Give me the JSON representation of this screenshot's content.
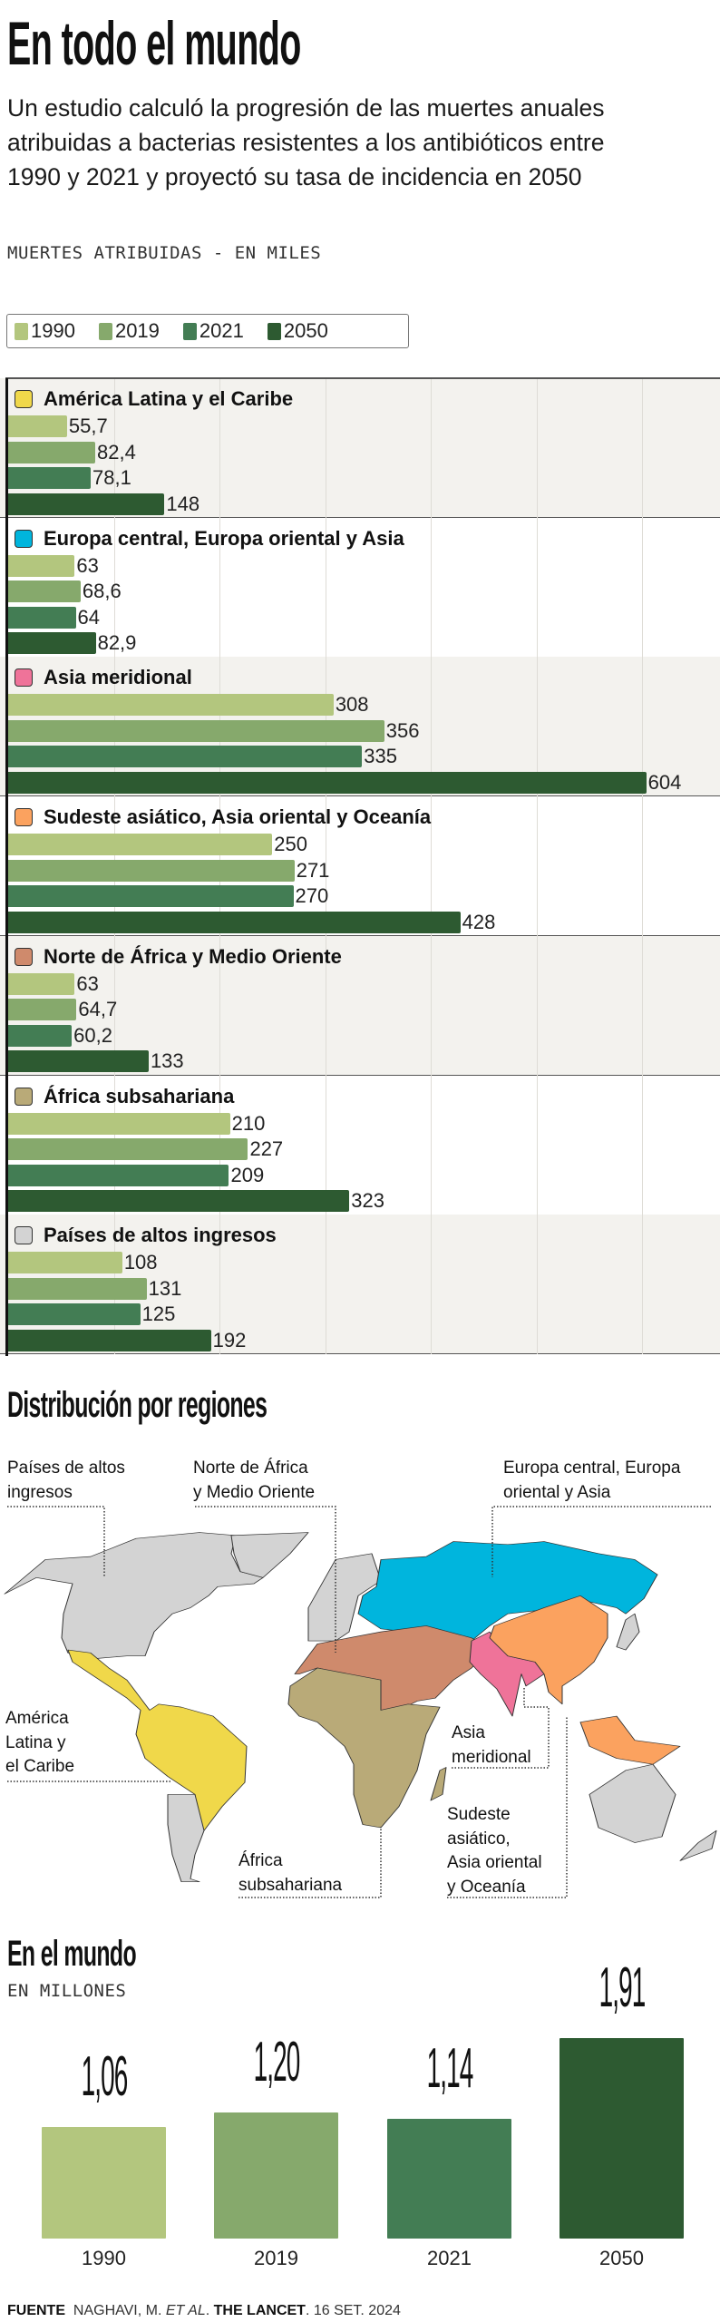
{
  "header": {
    "title": "En todo el mundo",
    "subtitle": "Un estudio calculó la progresión de las muertes anuales atribuidas a bacterias resistentes a los antibióticos entre 1990 y 2021 y proyectó su tasa de incidencia en 2050",
    "unit": "MUERTES ATRIBUIDAS - EN MILES"
  },
  "chart_data": [
    {
      "type": "bar",
      "orientation": "horizontal",
      "unit": "miles de muertes",
      "xlim": [
        0,
        680
      ],
      "grid": true,
      "legend_placement": "top-left",
      "series_names": [
        "1990",
        "2019",
        "2021",
        "2050"
      ],
      "series_colors": [
        "#b3c67e",
        "#86a96c",
        "#437d54",
        "#2d5a31"
      ],
      "regions": [
        {
          "name": "América Latina y el Caribe",
          "color": "#f0d84a",
          "values": [
            55.7,
            82.4,
            78.1,
            148
          ],
          "labels": [
            "55,7",
            "82,4",
            "78,1",
            "148"
          ]
        },
        {
          "name": "Europa central, Europa oriental y Asia",
          "color": "#00b5dd",
          "values": [
            63,
            68.6,
            64,
            82.9
          ],
          "labels": [
            "63",
            "68,6",
            "64",
            "82,9"
          ]
        },
        {
          "name": "Asia meridional",
          "color": "#ef7399",
          "values": [
            308,
            356,
            335,
            604
          ],
          "labels": [
            "308",
            "356",
            "335",
            "604"
          ]
        },
        {
          "name": "Sudeste asiático, Asia oriental y Oceanía",
          "color": "#fba25f",
          "values": [
            250,
            271,
            270,
            428
          ],
          "labels": [
            "250",
            "271",
            "270",
            "428"
          ]
        },
        {
          "name": "Norte de África y Medio Oriente",
          "color": "#cf8a6c",
          "values": [
            63,
            64.7,
            60.2,
            133
          ],
          "labels": [
            "63",
            "64,7",
            "60,2",
            "133"
          ]
        },
        {
          "name": "África subsahariana",
          "color": "#b9aa78",
          "values": [
            210,
            227,
            209,
            323
          ],
          "labels": [
            "210",
            "227",
            "209",
            "323"
          ]
        },
        {
          "name": "Países de altos ingresos",
          "color": "#d3d3d3",
          "values": [
            108,
            131,
            125,
            192
          ],
          "labels": [
            "108",
            "131",
            "125",
            "192"
          ]
        }
      ]
    },
    {
      "type": "bar",
      "title": "En el mundo",
      "unit": "EN MILLONES",
      "categories": [
        "1990",
        "2019",
        "2021",
        "2050"
      ],
      "values": [
        1.06,
        1.2,
        1.14,
        1.91
      ],
      "labels": [
        "1,06",
        "1,20",
        "1,14",
        "1,91"
      ],
      "colors": [
        "#b3c67e",
        "#86a96c",
        "#437d54",
        "#2d5a31"
      ],
      "ylim": [
        0,
        1.91
      ]
    }
  ],
  "map": {
    "title": "Distribución por regiones",
    "labels": {
      "high_income": [
        "Países de altos",
        "ingresos"
      ],
      "north_africa": [
        "Norte de África",
        "y Medio Oriente"
      ],
      "europe_asia": [
        "Europa central, Europa",
        "oriental y Asia"
      ],
      "latin_america": [
        "América",
        "Latina y",
        "el Caribe"
      ],
      "south_asia": [
        "Asia",
        "meridional"
      ],
      "subsaharan": [
        "África",
        "subsahariana"
      ],
      "southeast_asia": [
        "Sudeste",
        "asiático,",
        "Asia oriental",
        "y Oceanía"
      ]
    }
  },
  "source": {
    "label": "FUENTE",
    "authors": "NAGHAVI, M.",
    "etal": "ET AL",
    "journal": "THE LANCET",
    "date": ". 16 SET. 2024"
  }
}
